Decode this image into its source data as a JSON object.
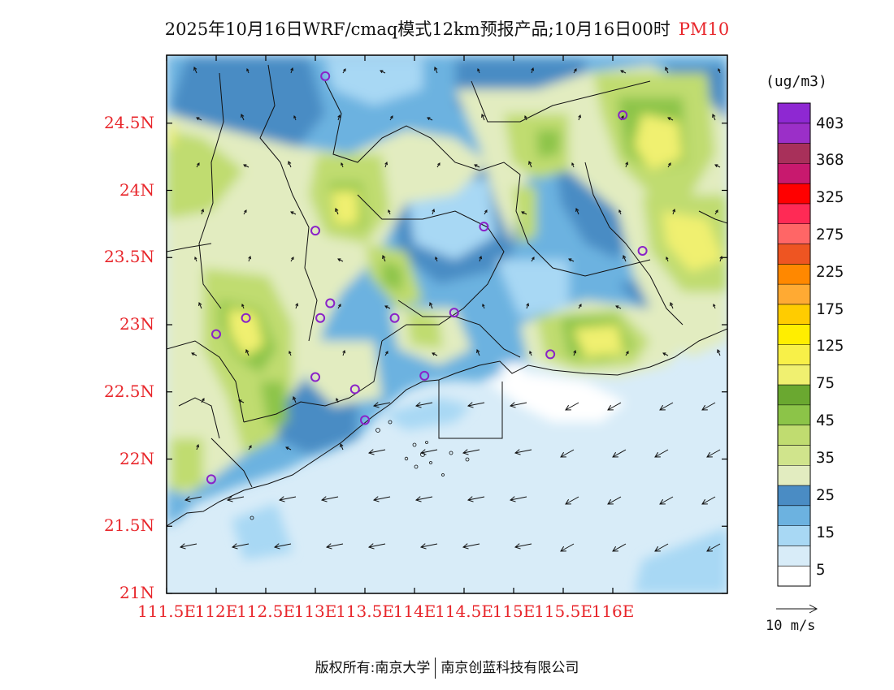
{
  "title": {
    "text": "2025年10月16日WRF/cmaq模式12km预报产品;10月16日00时",
    "variable": "PM10"
  },
  "axes": {
    "lat_labels": [
      "24.5N",
      "24N",
      "23.5N",
      "23N",
      "22.5N",
      "22N",
      "21.5N",
      "21N"
    ],
    "lon_labels": [
      "111.5E",
      "112E",
      "112.5E",
      "113E",
      "113.5E",
      "114E",
      "114.5E",
      "115E",
      "115.5E",
      "116E"
    ]
  },
  "colorbar": {
    "unit": "(ug/m3)",
    "labels": [
      "403",
      "368",
      "325",
      "275",
      "225",
      "175",
      "125",
      "75",
      "45",
      "35",
      "25",
      "15",
      "5"
    ],
    "colors_top_to_bottom": [
      "#8e28d2",
      "#9b2fc8",
      "#a8305a",
      "#c8196e",
      "#ff0000",
      "#ff2a55",
      "#ff6666",
      "#ee5522",
      "#ff8800",
      "#ffaa33",
      "#ffcc00",
      "#ffee00",
      "#f8f048",
      "#f0f070",
      "#6aa830",
      "#8cc448",
      "#c0dc70",
      "#d0e48c",
      "#e2ecc0",
      "#4a8cc4",
      "#6cb2e0",
      "#a8d8f4",
      "#d8ecf8",
      "#ffffff"
    ]
  },
  "wind_scale": {
    "label": "10 m/s"
  },
  "stations": [
    "113.1E 24.85N",
    "114.7E 23.73N",
    "113.0E 23.70N",
    "116.1E 24.56N",
    "116.3E 23.55N",
    "112.3E 23.05N",
    "112.0E 22.93N",
    "113.05E 23.05N",
    "113.15E 23.16N",
    "113.8E 23.05N",
    "114.4E 23.09N",
    "115.37E 22.78N",
    "114.1E 22.62N",
    "113.0E 22.61N",
    "113.4E 22.52N",
    "113.5E 22.29N",
    "111.95E 21.85N"
  ],
  "footer": {
    "left": "版权所有:南京大学",
    "right": "南京创蓝科技有限公司"
  }
}
